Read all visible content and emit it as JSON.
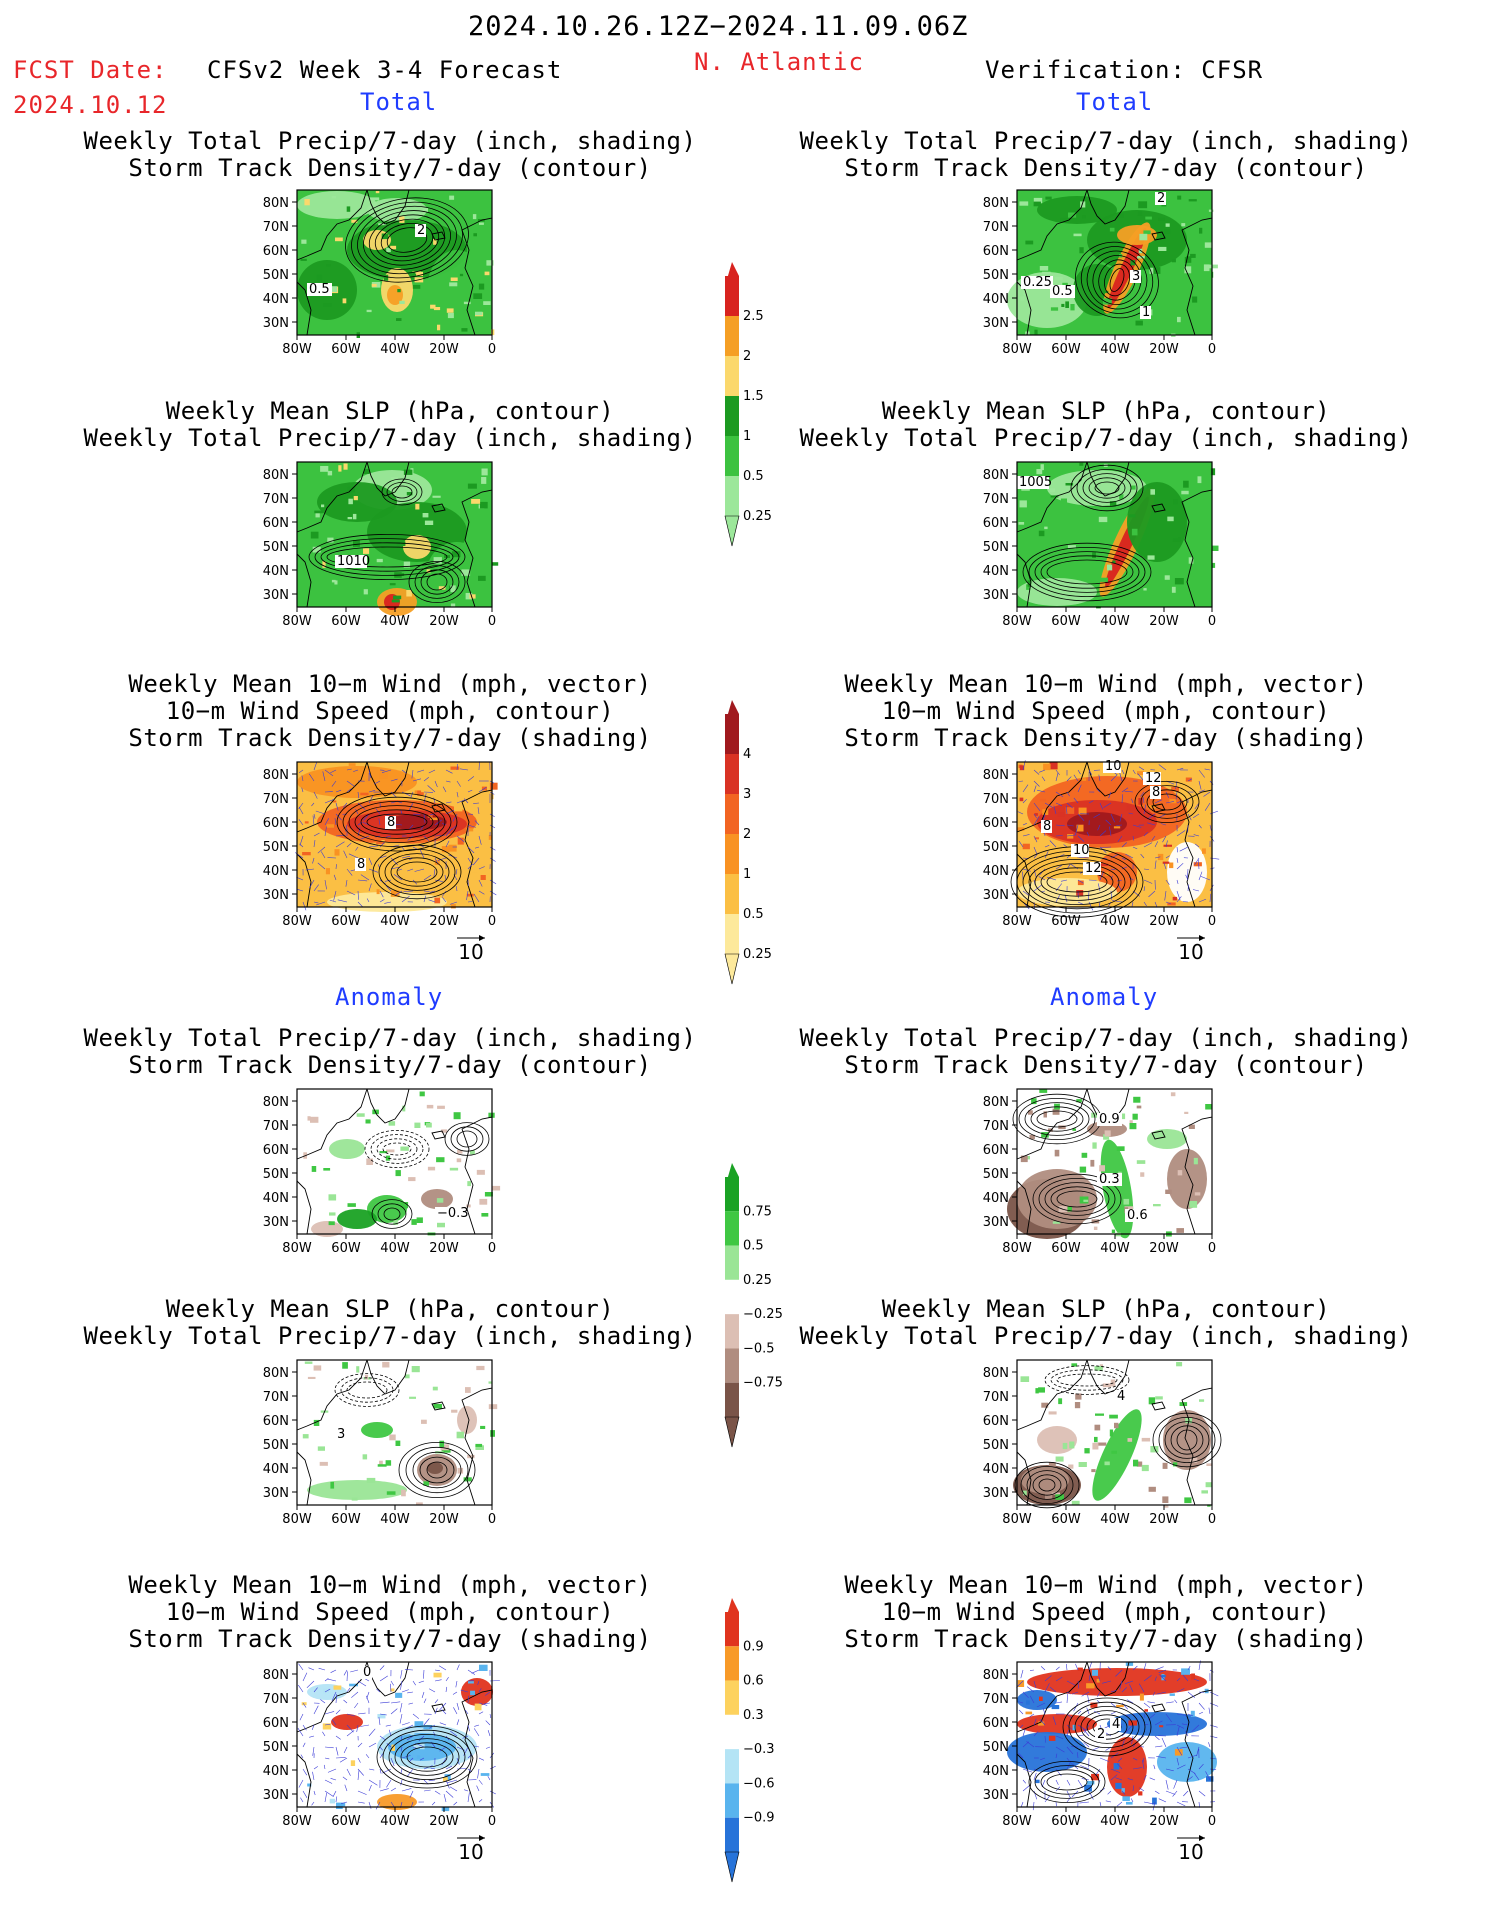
{
  "header": {
    "period": "2024.10.26.12Z−2024.11.09.06Z",
    "fcst_label": "FCST Date:",
    "fcst_date": "2024.10.12",
    "model_title": "CFSv2 Week 3-4 Forecast",
    "region": "N. Atlantic",
    "verification": "Verification: CFSR"
  },
  "section_labels": {
    "total_left": "Total",
    "total_right": "Total",
    "anom_left": "Anomaly",
    "anom_right": "Anomaly"
  },
  "panel_titles": {
    "precip_storm": [
      "Weekly Total Precip/7-day (inch, shading)",
      "Storm Track Density/7-day (contour)"
    ],
    "slp_precip": [
      "Weekly Mean SLP (hPa, contour)",
      "Weekly Total Precip/7-day (inch, shading)"
    ],
    "wind_storm": [
      "Weekly Mean 10−m Wind (mph, vector)",
      "10−m Wind Speed (mph, contour)",
      "Storm Track Density/7-day (shading)"
    ]
  },
  "axes": {
    "lat_ticks": [
      "80N",
      "70N",
      "60N",
      "50N",
      "40N",
      "30N"
    ],
    "lon_ticks": [
      "80W",
      "60W",
      "40W",
      "20W",
      "0"
    ]
  },
  "vector_ref": "10",
  "colorbars": {
    "precip_total": {
      "labels": [
        "2.5",
        "2",
        "1.5",
        "1",
        "0.5",
        "0.25"
      ],
      "colors": [
        "#d8231f",
        "#f59f25",
        "#fbd86c",
        "#1c9a21",
        "#3cc240",
        "#9ce79a"
      ]
    },
    "storm_total": {
      "labels": [
        "4",
        "3",
        "2",
        "1",
        "0.5",
        "0.25"
      ],
      "colors": [
        "#a0191e",
        "#d93224",
        "#f26422",
        "#f99222",
        "#fbbf44",
        "#fde99b"
      ]
    },
    "precip_anom": {
      "labels": [
        "0.75",
        "0.5",
        "0.25",
        "−0.25",
        "−0.5",
        "−0.75"
      ],
      "colors": [
        "#1aa224",
        "#3fc743",
        "#9ae596",
        "#ffffff",
        "#dcbfb4",
        "#b08d80",
        "#7a5448"
      ]
    },
    "storm_anom": {
      "labels": [
        "0.9",
        "0.6",
        "0.3",
        "−0.3",
        "−0.6",
        "−0.9"
      ],
      "colors": [
        "#e0341e",
        "#f89a28",
        "#fdd25e",
        "#ffffff",
        "#b4e4f5",
        "#59b4ee",
        "#2773d9"
      ]
    }
  },
  "contour_labels": {
    "r1_left": [
      "2",
      "0.5"
    ],
    "r1_right": [
      "2",
      "0.25",
      "0.5",
      "3",
      "1"
    ],
    "r2_left": [
      "1010"
    ],
    "r2_right": [
      "1005"
    ],
    "r3_left": [
      "8",
      "8"
    ],
    "r3_right": [
      "10",
      "12",
      "8",
      "8",
      "10",
      "12"
    ],
    "r4_left": [
      "−0.3"
    ],
    "r4_right": [
      "0.9",
      "0.3",
      "0.6"
    ],
    "r5_left": [
      "3"
    ],
    "r5_right": [
      "4"
    ],
    "r6_left": [
      "0"
    ],
    "r6_right": [
      "2",
      "4"
    ]
  },
  "chart_data": [
    {
      "type": "heatmap",
      "title": "Weekly Total Precip/7-day (inch, shading) + Storm Track Density/7-day (contour)",
      "column": "CFSv2 Week 3-4 Forecast",
      "section": "Total",
      "xlim": [
        "80W",
        "0"
      ],
      "ylim": [
        "25N",
        "85N"
      ],
      "shading_levels": [
        0.25,
        0.5,
        1,
        1.5,
        2,
        2.5
      ],
      "contour_labels": [
        2,
        0.5
      ]
    },
    {
      "type": "heatmap",
      "title": "Weekly Total Precip/7-day (inch, shading) + Storm Track Density/7-day (contour)",
      "column": "Verification: CFSR",
      "section": "Total",
      "xlim": [
        "80W",
        "0"
      ],
      "ylim": [
        "25N",
        "85N"
      ],
      "shading_levels": [
        0.25,
        0.5,
        1,
        1.5,
        2,
        2.5
      ],
      "contour_labels": [
        2,
        0.25,
        0.5,
        3,
        1
      ]
    },
    {
      "type": "heatmap",
      "title": "Weekly Mean SLP (hPa, contour) + Weekly Total Precip/7-day (inch, shading)",
      "column": "CFSv2 Week 3-4 Forecast",
      "section": "Total",
      "shading_levels": [
        0.25,
        0.5,
        1,
        1.5,
        2,
        2.5
      ],
      "contour_labels": [
        1010
      ]
    },
    {
      "type": "heatmap",
      "title": "Weekly Mean SLP (hPa, contour) + Weekly Total Precip/7-day (inch, shading)",
      "column": "Verification: CFSR",
      "section": "Total",
      "shading_levels": [
        0.25,
        0.5,
        1,
        1.5,
        2,
        2.5
      ],
      "contour_labels": [
        1005
      ]
    },
    {
      "type": "heatmap",
      "title": "Weekly Mean 10-m Wind (mph, vector) + 10-m Wind Speed (mph, contour) + Storm Track Density/7-day (shading)",
      "column": "CFSv2 Week 3-4 Forecast",
      "section": "Total",
      "shading_levels": [
        0.25,
        0.5,
        1,
        2,
        3,
        4
      ],
      "contour_labels": [
        8,
        8
      ],
      "vector_reference": 10
    },
    {
      "type": "heatmap",
      "title": "Weekly Mean 10-m Wind (mph, vector) + 10-m Wind Speed (mph, contour) + Storm Track Density/7-day (shading)",
      "column": "Verification: CFSR",
      "section": "Total",
      "shading_levels": [
        0.25,
        0.5,
        1,
        2,
        3,
        4
      ],
      "contour_labels": [
        10,
        12,
        8,
        8,
        10,
        12
      ],
      "vector_reference": 10
    },
    {
      "type": "heatmap",
      "title": "Weekly Total Precip/7-day (inch, shading) + Storm Track Density/7-day (contour)",
      "column": "CFSv2 Week 3-4 Forecast",
      "section": "Anomaly",
      "shading_levels": [
        -0.75,
        -0.5,
        -0.25,
        0.25,
        0.5,
        0.75
      ],
      "contour_labels": [
        -0.3
      ]
    },
    {
      "type": "heatmap",
      "title": "Weekly Total Precip/7-day (inch, shading) + Storm Track Density/7-day (contour)",
      "column": "Verification: CFSR",
      "section": "Anomaly",
      "shading_levels": [
        -0.75,
        -0.5,
        -0.25,
        0.25,
        0.5,
        0.75
      ],
      "contour_labels": [
        0.9,
        0.3,
        0.6
      ]
    },
    {
      "type": "heatmap",
      "title": "Weekly Mean SLP (hPa, contour) + Weekly Total Precip/7-day (inch, shading)",
      "column": "CFSv2 Week 3-4 Forecast",
      "section": "Anomaly",
      "shading_levels": [
        -0.75,
        -0.5,
        -0.25,
        0.25,
        0.5,
        0.75
      ],
      "contour_labels": [
        3
      ]
    },
    {
      "type": "heatmap",
      "title": "Weekly Mean SLP (hPa, contour) + Weekly Total Precip/7-day (inch, shading)",
      "column": "Verification: CFSR",
      "section": "Anomaly",
      "shading_levels": [
        -0.75,
        -0.5,
        -0.25,
        0.25,
        0.5,
        0.75
      ],
      "contour_labels": [
        4
      ]
    },
    {
      "type": "heatmap",
      "title": "Weekly Mean 10-m Wind (mph, vector) + 10-m Wind Speed (mph, contour) + Storm Track Density/7-day (shading)",
      "column": "CFSv2 Week 3-4 Forecast",
      "section": "Anomaly",
      "shading_levels": [
        -0.9,
        -0.6,
        -0.3,
        0.3,
        0.6,
        0.9
      ],
      "contour_labels": [
        0
      ],
      "vector_reference": 10
    },
    {
      "type": "heatmap",
      "title": "Weekly Mean 10-m Wind (mph, vector) + 10-m Wind Speed (mph, contour) + Storm Track Density/7-day (shading)",
      "column": "Verification: CFSR",
      "section": "Anomaly",
      "shading_levels": [
        -0.9,
        -0.6,
        -0.3,
        0.3,
        0.6,
        0.9
      ],
      "contour_labels": [
        2,
        4
      ],
      "vector_reference": 10
    }
  ]
}
